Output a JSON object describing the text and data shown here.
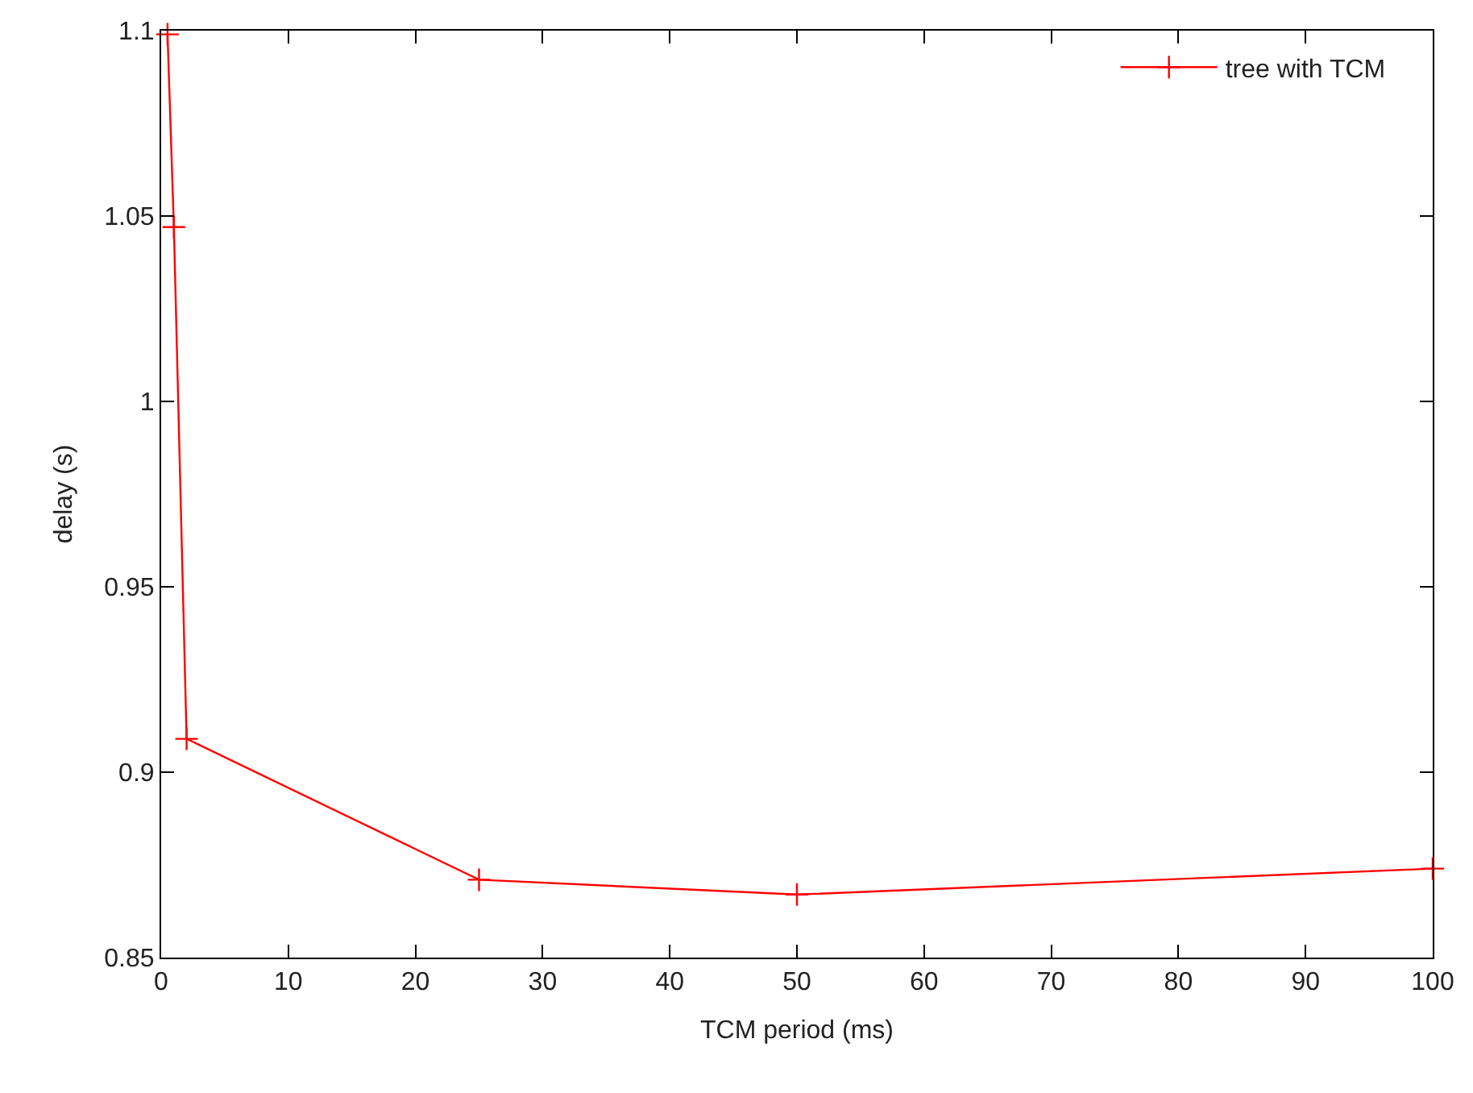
{
  "chart_data": {
    "type": "line",
    "xlabel": "TCM period (ms)",
    "ylabel": "delay (s)",
    "x": [
      0.5,
      1,
      2,
      25,
      50,
      100
    ],
    "series": [
      {
        "name": "tree with TCM",
        "color": "#ff0000",
        "values": [
          1.099,
          1.047,
          0.909,
          0.871,
          0.867,
          0.874
        ]
      }
    ],
    "xlim": [
      0,
      100
    ],
    "xticks": [
      0,
      10,
      20,
      30,
      40,
      50,
      60,
      70,
      80,
      90,
      100
    ],
    "ylim": [
      0.85,
      1.1
    ],
    "yticks": [
      0.85,
      0.9,
      0.95,
      1,
      1.05,
      1.1
    ],
    "legend": "top right",
    "marker": "cross",
    "line_style": "solid"
  }
}
